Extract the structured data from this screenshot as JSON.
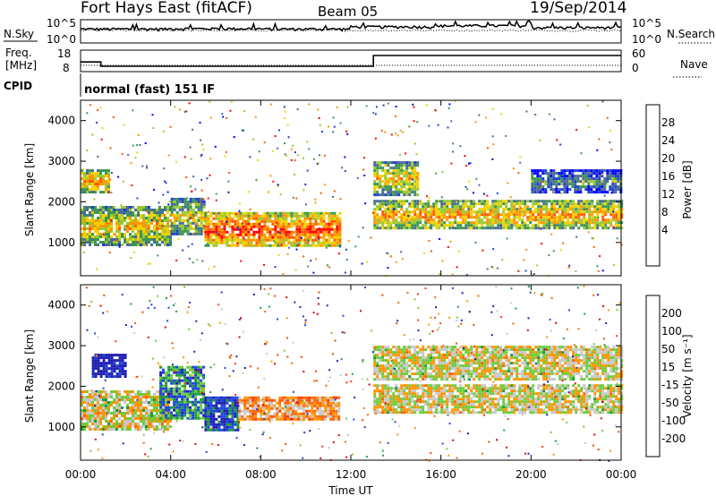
{
  "header": {
    "title": "Fort Hays East (fitACF)",
    "beam": "Beam 05",
    "date": "19/Sep/2014"
  },
  "noise_panel": {
    "left_label": "N.Sky",
    "right_label": "N.Search",
    "left_ticks": [
      "10^5",
      "10^0"
    ],
    "right_ticks": [
      "10^5",
      "10^0"
    ]
  },
  "freq_panel": {
    "left_label_1": "Freq.",
    "left_label_2": "[MHz]",
    "right_label": "Nave",
    "left_ticks": [
      "18",
      "8"
    ],
    "right_ticks": [
      "60",
      "0"
    ]
  },
  "cpid": {
    "label": "CPID",
    "mode": "normal (fast) 151 IF"
  },
  "power_panel": {
    "ylabel": "Slant Range [km]",
    "cbar_label": "Power [dB]",
    "cbar_ticks": [
      "28",
      "24",
      "20",
      "16",
      "12",
      "8",
      "4"
    ],
    "cbar_colors": [
      "#ff0000",
      "#ff5a00",
      "#ff9600",
      "#f0d200",
      "#9ac832",
      "#3c9650",
      "#4a6a9a",
      "#2040d0",
      "#0000ff"
    ],
    "y_ticks": [
      "4000",
      "3000",
      "2000",
      "1000"
    ]
  },
  "velocity_panel": {
    "ylabel": "Slant Range [km]",
    "cbar_label": "Velocity [m s⁻¹]",
    "cbar_ticks": [
      "200",
      "100",
      "50",
      "15",
      "-15",
      "-50",
      "-100",
      "-200"
    ],
    "cbar_colors": [
      "#1e1eb4",
      "#1e46dc",
      "#1e9a3c",
      "#6ecc3c",
      "#c8c8c8",
      "#ff9600",
      "#ff6400",
      "#ff3c00",
      "#e60000"
    ],
    "y_ticks": [
      "4000",
      "3000",
      "2000",
      "1000"
    ]
  },
  "x_axis": {
    "label": "Time UT",
    "ticks": [
      "00:00",
      "04:00",
      "08:00",
      "12:00",
      "16:00",
      "20:00",
      "00:00"
    ]
  },
  "chart_data": [
    {
      "type": "line",
      "title": "",
      "ylabel": "N.Sky",
      "x": [
        "00:00",
        "04:00",
        "08:00",
        "12:00",
        "16:00",
        "20:00",
        "24:00"
      ],
      "series": [
        {
          "name": "N.Sky",
          "values": [
            1000,
            1200,
            1000,
            3000,
            5000,
            2000,
            1000
          ]
        }
      ],
      "scale": "log",
      "ylim": [
        1,
        100000
      ]
    },
    {
      "type": "line",
      "title": "",
      "ylabel": "Freq. [MHz]",
      "x_hours": [
        0,
        0.9,
        0.9,
        13.0,
        13.0,
        24
      ],
      "series": [
        {
          "name": "Freq.",
          "values": [
            12.5,
            12.5,
            10.5,
            10.5,
            15.5,
            15.5
          ]
        },
        {
          "name": "Nave",
          "values": [
            5,
            5,
            5,
            5,
            5,
            5
          ]
        }
      ],
      "ylim": [
        8,
        18
      ]
    },
    {
      "type": "heatmap",
      "title": "Power [dB]",
      "xlabel": "Time UT",
      "ylabel": "Slant Range [km]",
      "xlim": [
        0,
        24
      ],
      "ylim": [
        180,
        4500
      ],
      "colorbar_range": [
        0,
        30
      ],
      "bands": [
        {
          "t0": 0.0,
          "t1": 4.0,
          "r0": 950,
          "r1": 1900,
          "power": 20
        },
        {
          "t0": 0.0,
          "t1": 1.2,
          "r0": 2250,
          "r1": 2800,
          "power": 22
        },
        {
          "t0": 4.0,
          "t1": 5.5,
          "r0": 1200,
          "r1": 2100,
          "power": 18
        },
        {
          "t0": 5.5,
          "t1": 11.5,
          "r0": 900,
          "r1": 1750,
          "power": 26
        },
        {
          "t0": 13.0,
          "t1": 24.0,
          "r0": 1350,
          "r1": 2050,
          "power": 22
        },
        {
          "t0": 13.0,
          "t1": 15.0,
          "r0": 2200,
          "r1": 3000,
          "power": 20
        },
        {
          "t0": 20.0,
          "t1": 24.0,
          "r0": 2250,
          "r1": 2800,
          "power": 12
        }
      ]
    },
    {
      "type": "heatmap",
      "title": "Velocity [m s⁻¹]",
      "xlabel": "Time UT",
      "ylabel": "Slant Range [km]",
      "xlim": [
        0,
        24
      ],
      "ylim": [
        180,
        4500
      ],
      "colorbar_range": [
        -200,
        200
      ],
      "bands": [
        {
          "t0": 0.0,
          "t1": 4.0,
          "r0": 950,
          "r1": 1900,
          "velocity": 0
        },
        {
          "t0": 0.5,
          "t1": 2.0,
          "r0": 2250,
          "r1": 2800,
          "velocity": 200
        },
        {
          "t0": 3.5,
          "t1": 5.5,
          "r0": 1200,
          "r1": 2500,
          "velocity": 100
        },
        {
          "t0": 5.5,
          "t1": 7.0,
          "r0": 900,
          "r1": 1750,
          "velocity": 150
        },
        {
          "t0": 7.0,
          "t1": 11.5,
          "r0": 1200,
          "r1": 1750,
          "velocity": -50
        },
        {
          "t0": 13.0,
          "t1": 24.0,
          "r0": 1350,
          "r1": 2050,
          "velocity": 0
        },
        {
          "t0": 13.0,
          "t1": 24.0,
          "r0": 2200,
          "r1": 3000,
          "velocity": 0
        }
      ]
    }
  ]
}
